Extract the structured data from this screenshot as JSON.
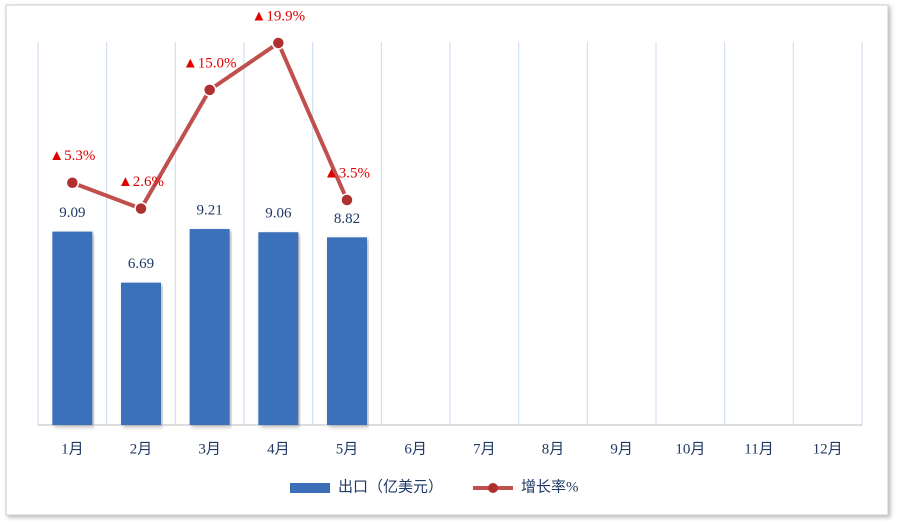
{
  "chart_data": {
    "type": "bar-line",
    "categories": [
      "1月",
      "2月",
      "3月",
      "4月",
      "5月",
      "6月",
      "7月",
      "8月",
      "9月",
      "10月",
      "11月",
      "12月"
    ],
    "series": [
      {
        "name": "出口（亿美元）",
        "type": "bar",
        "color": "#3b6fba",
        "values": [
          9.09,
          6.69,
          9.21,
          9.06,
          8.82,
          null,
          null,
          null,
          null,
          null,
          null,
          null
        ]
      },
      {
        "name": "增长率%",
        "type": "line",
        "axis": "y2",
        "color": "#c0504d",
        "label_color": "#e00000",
        "values": [
          5.3,
          2.6,
          15.0,
          19.9,
          3.5,
          null,
          null,
          null,
          null,
          null,
          null,
          null
        ],
        "value_labels": [
          "▲5.3%",
          "▲2.6%",
          "▲15.0%",
          "▲19.9%",
          "▲3.5%",
          null,
          null,
          null,
          null,
          null,
          null,
          null
        ]
      }
    ],
    "ylim": [
      0,
      18
    ],
    "y2lim": [
      -20,
      20
    ],
    "grid": true,
    "legend": "bottom"
  }
}
